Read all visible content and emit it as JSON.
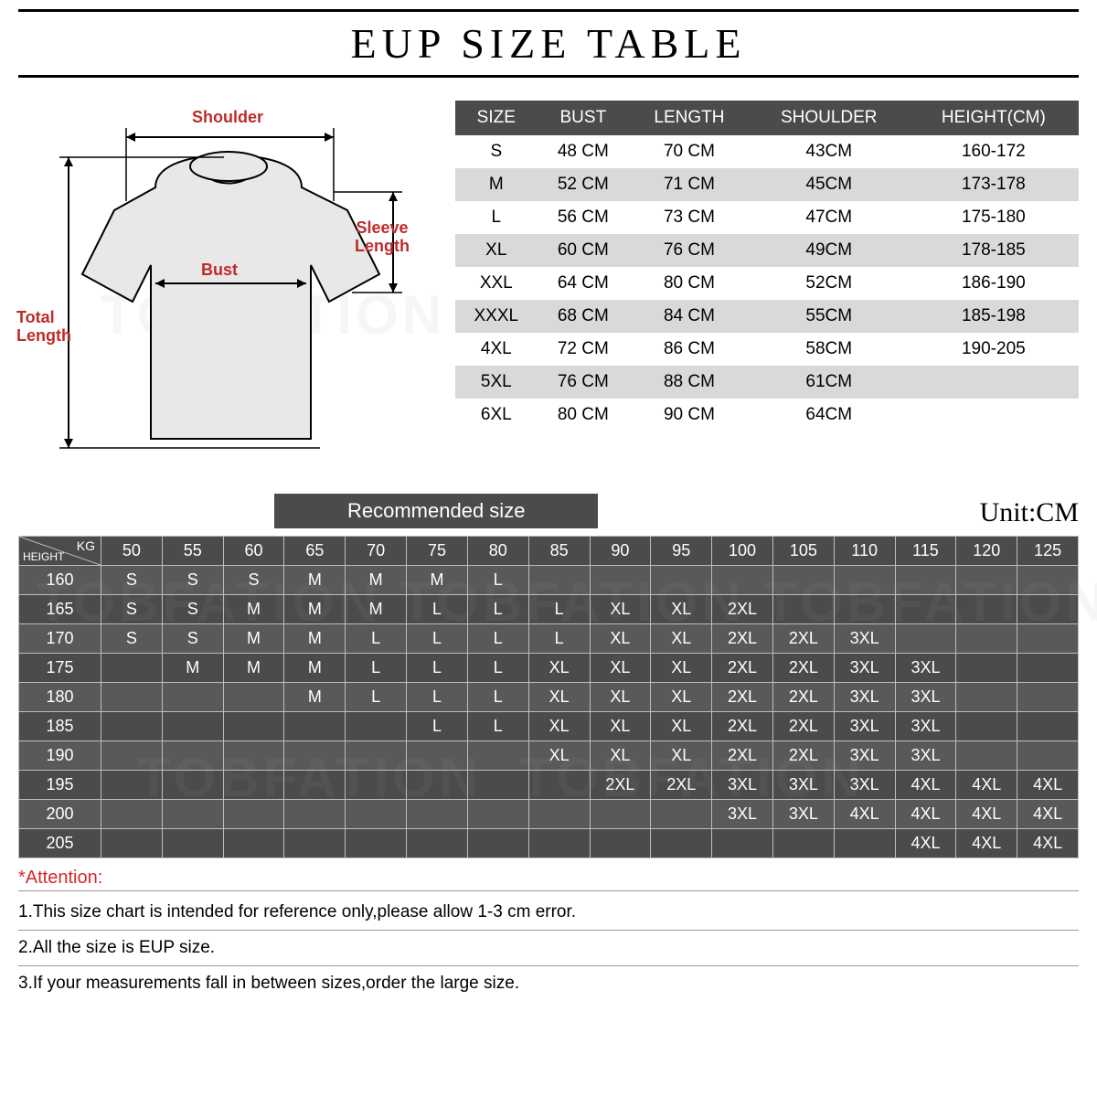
{
  "title": "EUP  SIZE TABLE",
  "watermark": "TOBFATION",
  "diagram": {
    "shoulder": "Shoulder",
    "bust": "Bust",
    "sleeve": "Sleeve\nLength",
    "total": "Total\nLength",
    "label_color": "#bf2a2a",
    "shirt_stroke": "#000000",
    "shirt_fill": "#e8e8e8"
  },
  "size_table": {
    "header_bg": "#4b4b4b",
    "row_alt_bg": "#d9d9d9",
    "columns": [
      "SIZE",
      "BUST",
      "LENGTH",
      "SHOULDER",
      "HEIGHT(CM)"
    ],
    "rows": [
      [
        "S",
        "48 CM",
        "70 CM",
        "43CM",
        "160-172"
      ],
      [
        "M",
        "52 CM",
        "71 CM",
        "45CM",
        "173-178"
      ],
      [
        "L",
        "56 CM",
        "73 CM",
        "47CM",
        "175-180"
      ],
      [
        "XL",
        "60 CM",
        "76 CM",
        "49CM",
        "178-185"
      ],
      [
        "XXL",
        "64 CM",
        "80 CM",
        "52CM",
        "186-190"
      ],
      [
        "XXXL",
        "68 CM",
        "84 CM",
        "55CM",
        "185-198"
      ],
      [
        "4XL",
        "72 CM",
        "86 CM",
        "58CM",
        "190-205"
      ],
      [
        "5XL",
        "76 CM",
        "88 CM",
        "61CM",
        ""
      ],
      [
        "6XL",
        "80 CM",
        "90 CM",
        "64CM",
        ""
      ]
    ]
  },
  "recommended_label": "Recommended size",
  "unit_label": "Unit:CM",
  "rec_grid": {
    "header_bg": "#4b4b4b",
    "row_bg_a": "#595959",
    "row_bg_b": "#4b4b4b",
    "corner_kg": "KG",
    "corner_height": "HEIGHT",
    "weights": [
      "50",
      "55",
      "60",
      "65",
      "70",
      "75",
      "80",
      "85",
      "90",
      "95",
      "100",
      "105",
      "110",
      "115",
      "120",
      "125"
    ],
    "heights": [
      "160",
      "165",
      "170",
      "175",
      "180",
      "185",
      "190",
      "195",
      "200",
      "205"
    ],
    "cells": [
      [
        "S",
        "S",
        "S",
        "M",
        "M",
        "M",
        "L",
        "",
        "",
        "",
        "",
        "",
        "",
        "",
        "",
        ""
      ],
      [
        "S",
        "S",
        "M",
        "M",
        "M",
        "L",
        "L",
        "L",
        "XL",
        "XL",
        "2XL",
        "",
        "",
        "",
        "",
        ""
      ],
      [
        "S",
        "S",
        "M",
        "M",
        "L",
        "L",
        "L",
        "L",
        "XL",
        "XL",
        "2XL",
        "2XL",
        "3XL",
        "",
        "",
        ""
      ],
      [
        "",
        "M",
        "M",
        "M",
        "L",
        "L",
        "L",
        "XL",
        "XL",
        "XL",
        "2XL",
        "2XL",
        "3XL",
        "3XL",
        "",
        ""
      ],
      [
        "",
        "",
        "",
        "M",
        "L",
        "L",
        "L",
        "XL",
        "XL",
        "XL",
        "2XL",
        "2XL",
        "3XL",
        "3XL",
        "",
        ""
      ],
      [
        "",
        "",
        "",
        "",
        "",
        "L",
        "L",
        "XL",
        "XL",
        "XL",
        "2XL",
        "2XL",
        "3XL",
        "3XL",
        "",
        ""
      ],
      [
        "",
        "",
        "",
        "",
        "",
        "",
        "",
        "XL",
        "XL",
        "XL",
        "2XL",
        "2XL",
        "3XL",
        "3XL",
        "",
        ""
      ],
      [
        "",
        "",
        "",
        "",
        "",
        "",
        "",
        "",
        "2XL",
        "2XL",
        "3XL",
        "3XL",
        "3XL",
        "4XL",
        "4XL",
        "4XL"
      ],
      [
        "",
        "",
        "",
        "",
        "",
        "",
        "",
        "",
        "",
        "",
        "3XL",
        "3XL",
        "4XL",
        "4XL",
        "4XL",
        "4XL"
      ],
      [
        "",
        "",
        "",
        "",
        "",
        "",
        "",
        "",
        "",
        "",
        "",
        "",
        "",
        "4XL",
        "4XL",
        "4XL"
      ]
    ]
  },
  "attention": {
    "title": "*Attention:",
    "items": [
      "1.This size chart is intended for reference only,please allow 1-3 cm error.",
      "2.All the size is EUP size.",
      "3.If your measurements fall in between sizes,order the large size."
    ]
  }
}
